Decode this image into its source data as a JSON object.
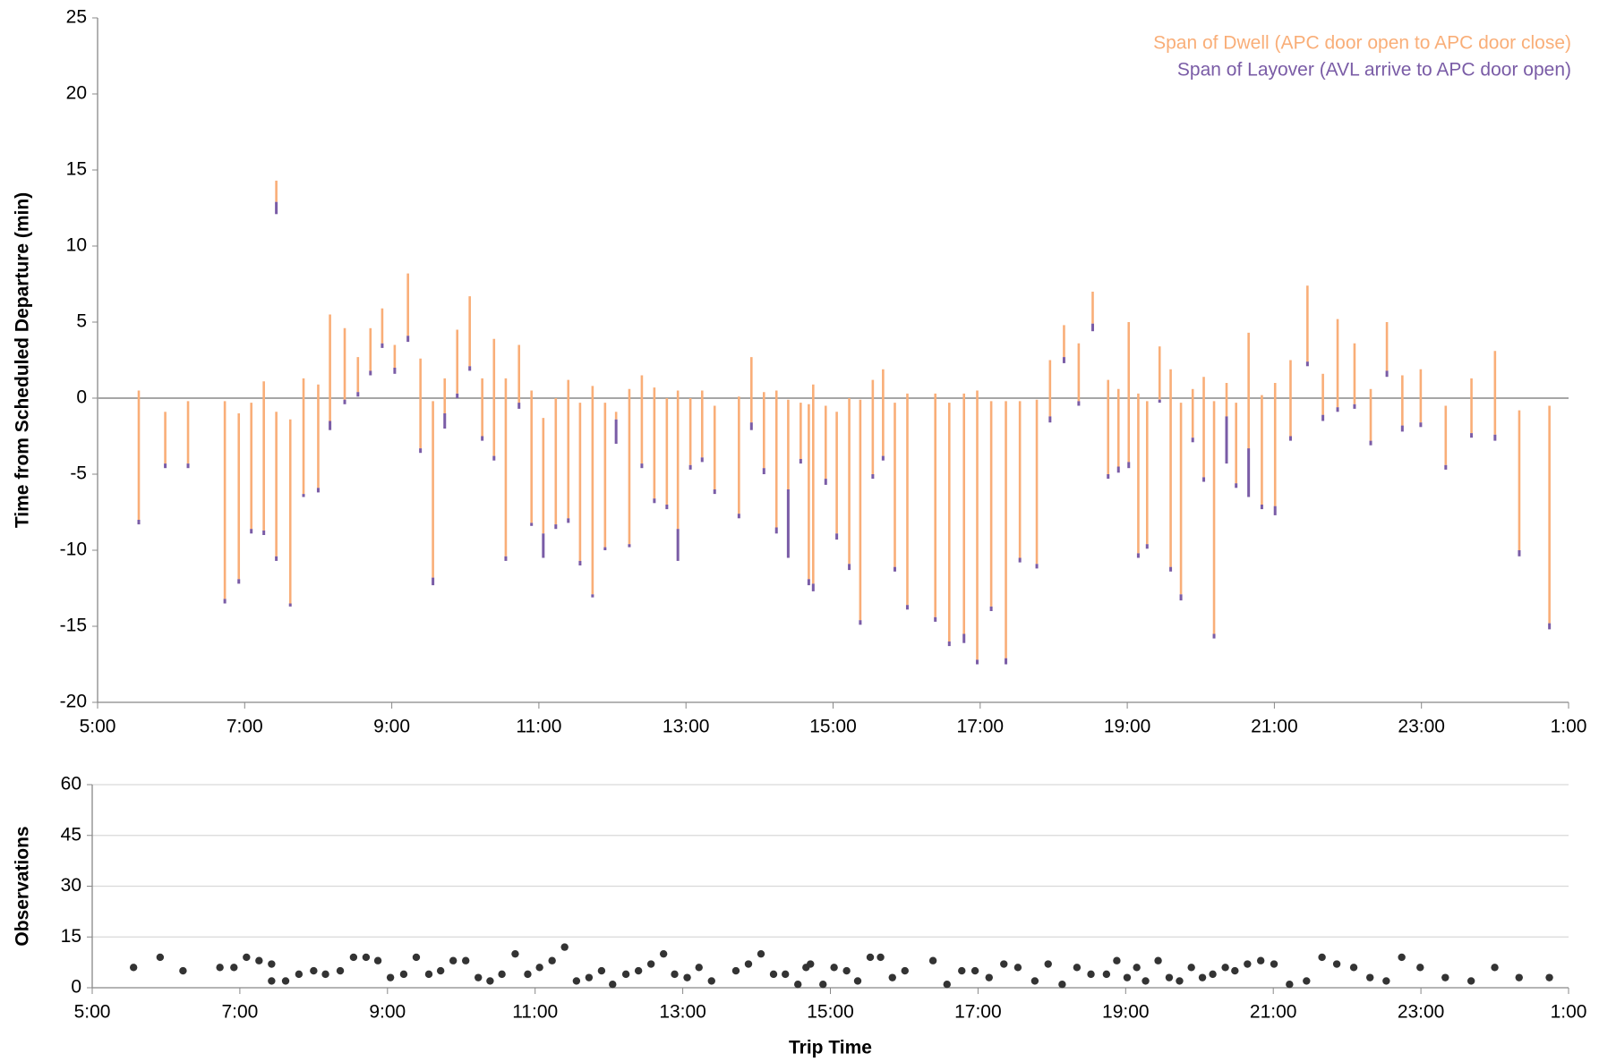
{
  "chart_data": [
    {
      "type": "range",
      "ylabel": "Time from Scheduled Departure (min)",
      "xlim": [
        5,
        25
      ],
      "xticks": [
        {
          "value": 5,
          "label": "5:00"
        },
        {
          "value": 7,
          "label": "7:00"
        },
        {
          "value": 9,
          "label": "9:00"
        },
        {
          "value": 11,
          "label": "11:00"
        },
        {
          "value": 13,
          "label": "13:00"
        },
        {
          "value": 15,
          "label": "15:00"
        },
        {
          "value": 17,
          "label": "17:00"
        },
        {
          "value": 19,
          "label": "19:00"
        },
        {
          "value": 21,
          "label": "21:00"
        },
        {
          "value": 23,
          "label": "23:00"
        },
        {
          "value": 25,
          "label": "1:00"
        }
      ],
      "ylim": [
        -20,
        25
      ],
      "yticks": [
        -20,
        -15,
        -10,
        -5,
        0,
        5,
        10,
        15,
        20,
        25
      ],
      "grid": false,
      "legend": "top-right",
      "x": [
        5.56,
        5.92,
        6.23,
        6.73,
        6.92,
        7.09,
        7.26,
        7.43,
        7.43,
        7.62,
        7.8,
        8.0,
        8.16,
        8.36,
        8.54,
        8.71,
        8.87,
        9.04,
        9.22,
        9.39,
        9.56,
        9.72,
        9.89,
        10.06,
        10.23,
        10.39,
        10.55,
        10.73,
        10.9,
        11.06,
        11.23,
        11.4,
        11.56,
        11.73,
        11.9,
        12.05,
        12.23,
        12.4,
        12.57,
        12.74,
        12.89,
        13.06,
        13.22,
        13.39,
        13.72,
        13.89,
        14.06,
        14.23,
        14.39,
        14.56,
        14.67,
        14.73,
        14.9,
        15.05,
        15.22,
        15.37,
        15.54,
        15.68,
        15.84,
        16.01,
        16.39,
        16.58,
        16.78,
        16.96,
        17.15,
        17.35,
        17.54,
        17.77,
        17.95,
        18.14,
        18.34,
        18.53,
        18.74,
        18.88,
        19.02,
        19.15,
        19.27,
        19.44,
        19.59,
        19.73,
        19.89,
        20.04,
        20.18,
        20.35,
        20.48,
        20.65,
        20.83,
        21.01,
        21.22,
        21.45,
        21.66,
        21.86,
        22.09,
        22.31,
        22.53,
        22.74,
        22.99,
        23.33,
        23.68,
        24.0,
        24.33,
        24.74
      ],
      "series": [
        {
          "name": "Span of Dwell (APC door open to APC door close)",
          "color": "#f9ae78",
          "low": [
            -8.0,
            -4.3,
            -4.3,
            -13.2,
            -11.9,
            -8.6,
            -8.7,
            12.9,
            -10.4,
            -13.5,
            -6.3,
            -5.9,
            -1.5,
            -0.1,
            0.4,
            1.8,
            3.6,
            2.0,
            4.1,
            -3.3,
            -11.8,
            -1.0,
            0.3,
            2.1,
            -2.5,
            -3.8,
            -10.4,
            -0.3,
            -8.2,
            -8.9,
            -8.3,
            -7.9,
            -10.7,
            -12.9,
            -9.8,
            -1.4,
            -9.6,
            -4.3,
            -6.6,
            -7.0,
            -8.6,
            -4.4,
            -3.9,
            -6.0,
            -7.6,
            -1.6,
            -4.6,
            -8.5,
            -6.0,
            -4.0,
            -11.9,
            -12.2,
            -5.3,
            -8.9,
            -10.9,
            -14.6,
            -5.0,
            -3.8,
            -11.1,
            -13.6,
            -14.4,
            -16.0,
            -15.5,
            -17.2,
            -13.7,
            -17.1,
            -10.5,
            -10.9,
            -1.2,
            2.7,
            -0.2,
            4.9,
            -5.0,
            -4.5,
            -4.2,
            -10.2,
            -9.6,
            -0.1,
            -11.1,
            -12.9,
            -2.6,
            -5.2,
            -15.5,
            -1.2,
            -5.6,
            -3.3,
            -7.0,
            -7.1,
            -2.5,
            2.4,
            -1.1,
            -0.6,
            -0.4,
            -2.8,
            1.8,
            -1.8,
            -1.6,
            -4.4,
            -2.3,
            -2.4,
            -10.0,
            -14.8
          ],
          "high": [
            0.5,
            -0.9,
            -0.2,
            -0.2,
            -1.0,
            -0.3,
            1.1,
            14.3,
            -0.9,
            -1.4,
            1.3,
            0.9,
            5.5,
            4.6,
            2.7,
            4.6,
            5.9,
            3.5,
            8.2,
            2.6,
            -0.2,
            1.3,
            4.5,
            6.7,
            1.3,
            3.9,
            1.3,
            3.5,
            0.5,
            -1.3,
            0.0,
            1.2,
            -0.3,
            0.8,
            -0.3,
            -0.9,
            0.6,
            1.5,
            0.7,
            0.0,
            0.5,
            0.0,
            0.5,
            -0.5,
            0.1,
            2.7,
            0.4,
            0.5,
            -0.1,
            -0.3,
            -0.4,
            0.9,
            -0.5,
            -0.9,
            0.0,
            -0.1,
            1.2,
            1.9,
            -0.3,
            0.3,
            0.3,
            -0.3,
            0.3,
            0.5,
            -0.2,
            -0.2,
            -0.2,
            -0.1,
            2.5,
            4.8,
            3.6,
            7.0,
            1.2,
            0.6,
            5.0,
            0.3,
            -0.2,
            3.4,
            1.9,
            -0.3,
            0.6,
            1.4,
            -0.2,
            1.0,
            -0.3,
            4.3,
            0.2,
            1.0,
            2.5,
            7.4,
            1.6,
            5.2,
            3.6,
            0.6,
            5.0,
            1.5,
            1.9,
            -0.5,
            1.3,
            3.1,
            -0.8,
            -0.5
          ]
        },
        {
          "name": "Span of Layover (AVL arrive to APC door open)",
          "color": "#7a5ca6",
          "low": [
            -8.3,
            -4.6,
            -4.6,
            -13.5,
            -12.2,
            -8.9,
            -9.0,
            12.1,
            -10.7,
            -13.7,
            -6.5,
            -6.2,
            -2.1,
            -0.4,
            0.1,
            1.5,
            3.3,
            1.6,
            3.7,
            -3.6,
            -12.3,
            -2.0,
            0.0,
            1.8,
            -2.8,
            -4.1,
            -10.7,
            -0.7,
            -8.4,
            -10.5,
            -8.6,
            -8.2,
            -11.0,
            -13.1,
            -10.0,
            -3.0,
            -9.8,
            -4.6,
            -6.9,
            -7.3,
            -10.7,
            -4.7,
            -4.2,
            -6.3,
            -7.9,
            -2.1,
            -5.0,
            -8.9,
            -10.5,
            -4.3,
            -12.3,
            -12.7,
            -5.7,
            -9.3,
            -11.3,
            -14.9,
            -5.3,
            -4.1,
            -11.4,
            -13.9,
            -14.7,
            -16.3,
            -16.1,
            -17.5,
            -14.0,
            -17.5,
            -10.8,
            -11.2,
            -1.6,
            2.3,
            -0.5,
            4.4,
            -5.3,
            -4.9,
            -4.6,
            -10.5,
            -9.9,
            -0.3,
            -11.4,
            -13.3,
            -2.9,
            -5.5,
            -15.8,
            -4.3,
            -5.9,
            -6.5,
            -7.3,
            -7.7,
            -2.8,
            2.1,
            -1.5,
            -0.9,
            -0.7,
            -3.1,
            1.4,
            -2.2,
            -1.9,
            -4.7,
            -2.6,
            -2.8,
            -10.4,
            -15.2
          ],
          "high": [
            -8.0,
            -4.3,
            -4.3,
            -13.2,
            -11.9,
            -8.6,
            -8.7,
            12.9,
            -10.4,
            -13.5,
            -6.3,
            -5.9,
            -1.5,
            -0.1,
            0.4,
            1.8,
            3.6,
            2.0,
            4.1,
            -3.3,
            -11.8,
            -1.0,
            0.3,
            2.1,
            -2.5,
            -3.8,
            -10.4,
            -0.3,
            -8.2,
            -8.9,
            -8.3,
            -7.9,
            -10.7,
            -12.9,
            -9.8,
            -1.4,
            -9.6,
            -4.3,
            -6.6,
            -7.0,
            -8.6,
            -4.4,
            -3.9,
            -6.0,
            -7.6,
            -1.6,
            -4.6,
            -8.5,
            -6.0,
            -4.0,
            -11.9,
            -12.2,
            -5.3,
            -8.9,
            -10.9,
            -14.6,
            -5.0,
            -3.8,
            -11.1,
            -13.6,
            -14.4,
            -16.0,
            -15.5,
            -17.2,
            -13.7,
            -17.1,
            -10.5,
            -10.9,
            -1.2,
            2.7,
            -0.2,
            4.9,
            -5.0,
            -4.5,
            -4.2,
            -10.2,
            -9.6,
            -0.1,
            -11.1,
            -12.9,
            -2.6,
            -5.2,
            -15.5,
            -1.2,
            -5.6,
            -3.3,
            -7.0,
            -7.1,
            -2.5,
            2.4,
            -1.1,
            -0.6,
            -0.4,
            -2.8,
            1.8,
            -1.8,
            -1.6,
            -4.4,
            -2.3,
            -2.4,
            -10.0,
            -14.8
          ]
        }
      ]
    },
    {
      "type": "scatter",
      "xlabel": "Trip Time",
      "ylabel": "Observations",
      "xlim": [
        5,
        25
      ],
      "xticks": [
        {
          "value": 5,
          "label": "5:00"
        },
        {
          "value": 7,
          "label": "7:00"
        },
        {
          "value": 9,
          "label": "9:00"
        },
        {
          "value": 11,
          "label": "11:00"
        },
        {
          "value": 13,
          "label": "13:00"
        },
        {
          "value": 15,
          "label": "15:00"
        },
        {
          "value": 17,
          "label": "17:00"
        },
        {
          "value": 19,
          "label": "19:00"
        },
        {
          "value": 21,
          "label": "21:00"
        },
        {
          "value": 23,
          "label": "23:00"
        },
        {
          "value": 25,
          "label": "1:00"
        }
      ],
      "ylim": [
        0,
        60
      ],
      "yticks": [
        0,
        15,
        30,
        45,
        60
      ],
      "grid": true,
      "color": "#333333",
      "x": [
        5.56,
        5.92,
        6.23,
        6.73,
        6.92,
        7.09,
        7.26,
        7.43,
        7.43,
        7.62,
        7.8,
        8.0,
        8.16,
        8.36,
        8.54,
        8.71,
        8.87,
        9.04,
        9.22,
        9.39,
        9.56,
        9.72,
        9.89,
        10.06,
        10.23,
        10.39,
        10.55,
        10.73,
        10.9,
        11.06,
        11.23,
        11.4,
        11.56,
        11.73,
        11.9,
        12.05,
        12.23,
        12.4,
        12.57,
        12.74,
        12.89,
        13.06,
        13.22,
        13.39,
        13.72,
        13.89,
        14.06,
        14.23,
        14.39,
        14.56,
        14.67,
        14.73,
        14.9,
        15.05,
        15.22,
        15.37,
        15.54,
        15.68,
        15.84,
        16.01,
        16.39,
        16.58,
        16.78,
        16.96,
        17.15,
        17.35,
        17.54,
        17.77,
        17.95,
        18.14,
        18.34,
        18.53,
        18.74,
        18.88,
        19.02,
        19.15,
        19.27,
        19.44,
        19.59,
        19.73,
        19.89,
        20.04,
        20.18,
        20.35,
        20.48,
        20.65,
        20.83,
        21.01,
        21.22,
        21.45,
        21.66,
        21.86,
        22.09,
        22.31,
        22.53,
        22.74,
        22.99,
        23.33,
        23.68,
        24.0,
        24.33,
        24.74
      ],
      "values": [
        6,
        9,
        5,
        6,
        6,
        9,
        8,
        7,
        2,
        2,
        4,
        5,
        4,
        5,
        9,
        9,
        8,
        3,
        4,
        9,
        4,
        5,
        8,
        8,
        3,
        2,
        4,
        10,
        4,
        6,
        8,
        12,
        2,
        3,
        5,
        1,
        4,
        5,
        7,
        10,
        4,
        3,
        6,
        2,
        5,
        7,
        10,
        4,
        4,
        1,
        6,
        7,
        1,
        6,
        5,
        2,
        9,
        9,
        3,
        5,
        8,
        1,
        5,
        5,
        3,
        7,
        6,
        2,
        7,
        1,
        6,
        4,
        4,
        8,
        3,
        6,
        2,
        8,
        3,
        2,
        6,
        3,
        4,
        6,
        5,
        7,
        8,
        7,
        1,
        2,
        9,
        7,
        6,
        3,
        2,
        9,
        6,
        3,
        2,
        6,
        3,
        3
      ]
    }
  ]
}
